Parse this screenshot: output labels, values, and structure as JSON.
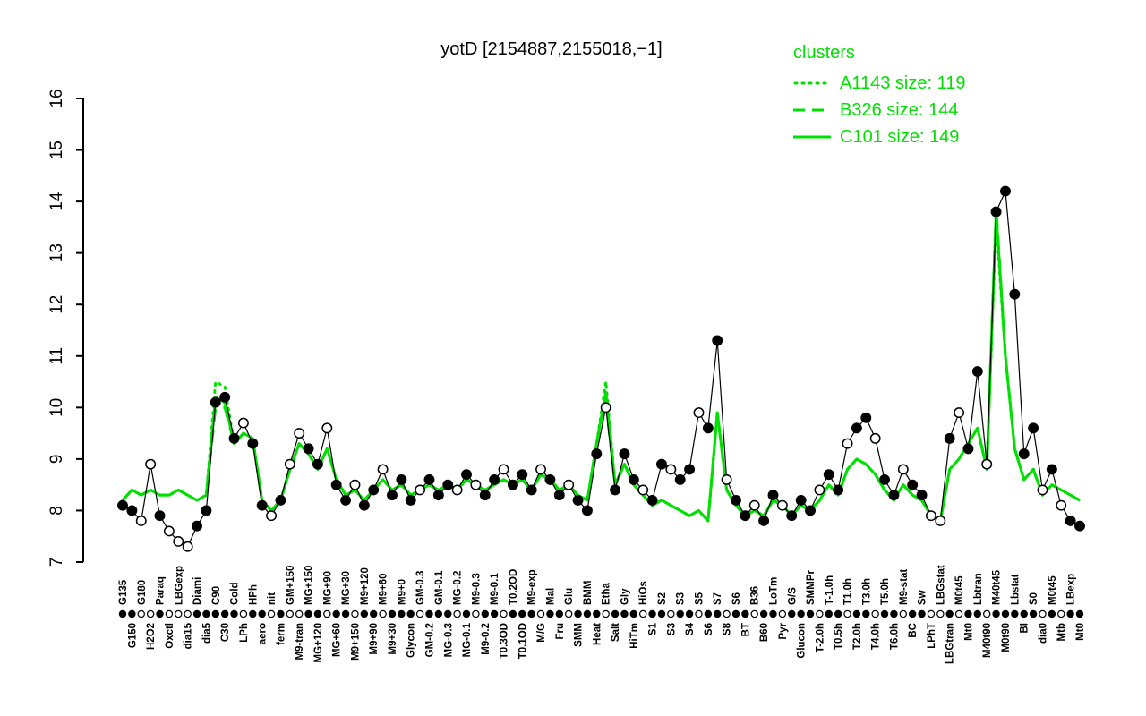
{
  "title": "yotD [2154887,2155018,−1]",
  "legend": {
    "header": "clusters"
  },
  "colors": {
    "cluster": "#00e000",
    "point_fill": "#000000",
    "point_open": "#ffffff",
    "axis": "#000000"
  },
  "chart_data": {
    "type": "line",
    "title": "yotD [2154887,2155018,−1]",
    "xlabel": "",
    "ylabel": "",
    "ylim": [
      7,
      16
    ],
    "yticks": [
      7,
      8,
      9,
      10,
      11,
      12,
      13,
      14,
      15,
      16
    ],
    "grid": false,
    "legend_position": "top-right",
    "categories": [
      "G135",
      "G150",
      "G180",
      "H2O2",
      "Paraq",
      "Oxctl",
      "LBGexp",
      "dia15",
      "Diami",
      "dia5",
      "C90",
      "C30",
      "Cold",
      "LPh",
      "HPh",
      "aero",
      "nit",
      "ferm",
      "GM+150",
      "M9-tran",
      "MG+150",
      "MG+120",
      "MG+90",
      "MG+60",
      "MG+30",
      "M9+150",
      "M9+120",
      "M9+90",
      "M9+60",
      "M9+30",
      "M9+0",
      "Glycon",
      "GM-0.3",
      "GM-0.2",
      "GM-0.1",
      "MG-0.3",
      "MG-0.2",
      "MG-0.1",
      "M9-0.3",
      "M9-0.2",
      "M9-0.1",
      "T0.3OD",
      "T0.2OD",
      "T0.1OD",
      "M9-exp",
      "M/G",
      "Mal",
      "Fru",
      "Glu",
      "SMM",
      "BMM",
      "Heat",
      "Etha",
      "Salt",
      "Gly",
      "HiTm",
      "HiOs",
      "S1",
      "S2",
      "S3",
      "S3",
      "S4",
      "S5",
      "S6",
      "S7",
      "S8",
      "S6",
      "BT",
      "B36",
      "B60",
      "LoTm",
      "Pyr",
      "G/S",
      "Glucon",
      "SMMPr",
      "T-2.0h",
      "T-1.0h",
      "T0.5h",
      "T1.0h",
      "T2.0h",
      "T3.0h",
      "T4.0h",
      "T5.0h",
      "T6.0h",
      "M9-stat",
      "BC",
      "Sw",
      "LPhT",
      "LBGstat",
      "LBGtran",
      "M0t45",
      "Mt0",
      "Lbtran",
      "M40t90",
      "M40t45",
      "M0t90",
      "Lbstat",
      "BI",
      "S0",
      "dia0",
      "M0t45",
      "Mtb",
      "LBexp",
      "Mt0"
    ],
    "points": {
      "name": "yotD expression",
      "values": [
        8.1,
        8.0,
        7.8,
        8.9,
        7.9,
        7.6,
        7.4,
        7.3,
        7.7,
        8.0,
        10.1,
        10.2,
        9.4,
        9.7,
        9.3,
        8.1,
        7.9,
        8.2,
        8.9,
        9.5,
        9.2,
        8.9,
        9.6,
        8.5,
        8.2,
        8.5,
        8.1,
        8.4,
        8.8,
        8.3,
        8.6,
        8.2,
        8.4,
        8.6,
        8.3,
        8.5,
        8.4,
        8.7,
        8.5,
        8.3,
        8.6,
        8.8,
        8.5,
        8.7,
        8.4,
        8.8,
        8.6,
        8.3,
        8.5,
        8.2,
        8.0,
        9.1,
        10.0,
        8.4,
        9.1,
        8.6,
        8.4,
        8.2,
        8.9,
        8.8,
        8.6,
        8.8,
        9.9,
        9.6,
        11.3,
        8.6,
        8.2,
        7.9,
        8.1,
        7.8,
        8.3,
        8.1,
        7.9,
        8.2,
        8.0,
        8.4,
        8.7,
        8.4,
        9.3,
        9.6,
        9.8,
        9.4,
        8.6,
        8.3,
        8.8,
        8.5,
        8.3,
        7.9,
        7.8,
        9.4,
        9.9,
        9.2,
        10.7,
        8.9,
        13.8,
        14.2,
        12.2,
        9.1,
        9.6,
        8.4,
        8.8,
        8.1,
        7.8,
        7.7
      ],
      "filled": [
        1,
        1,
        0,
        0,
        1,
        0,
        0,
        0,
        1,
        1,
        1,
        1,
        1,
        0,
        1,
        1,
        0,
        1,
        0,
        0,
        1,
        1,
        0,
        1,
        1,
        0,
        1,
        1,
        0,
        1,
        1,
        1,
        0,
        1,
        1,
        1,
        0,
        1,
        0,
        1,
        1,
        0,
        1,
        1,
        1,
        0,
        1,
        1,
        0,
        1,
        1,
        1,
        0,
        1,
        1,
        1,
        0,
        1,
        1,
        0,
        1,
        1,
        0,
        1,
        1,
        0,
        1,
        1,
        0,
        1,
        1,
        0,
        1,
        1,
        1,
        0,
        1,
        1,
        0,
        1,
        1,
        0,
        1,
        1,
        0,
        1,
        1,
        0,
        0,
        1,
        0,
        1,
        1,
        0,
        1,
        1,
        1,
        1,
        1,
        0,
        1,
        0,
        1,
        1
      ]
    },
    "series": [
      {
        "name": "A1143 size: 119",
        "dash": "dotted",
        "values": [
          8.2,
          8.4,
          8.3,
          8.4,
          8.3,
          8.3,
          8.4,
          8.3,
          8.2,
          8.3,
          10.5,
          10.4,
          9.3,
          9.5,
          9.4,
          8.2,
          8.0,
          8.2,
          8.8,
          9.3,
          9.1,
          8.8,
          9.2,
          8.6,
          8.3,
          8.4,
          8.2,
          8.4,
          8.6,
          8.4,
          8.5,
          8.3,
          8.4,
          8.5,
          8.4,
          8.5,
          8.4,
          8.6,
          8.5,
          8.4,
          8.5,
          8.6,
          8.5,
          8.6,
          8.4,
          8.7,
          8.6,
          8.4,
          8.5,
          8.3,
          8.2,
          9.3,
          10.5,
          8.5,
          8.9,
          8.5,
          8.3,
          8.1,
          8.2,
          8.1,
          8.0,
          7.9,
          8.0,
          7.8,
          9.9,
          8.4,
          8.1,
          7.9,
          8.0,
          7.9,
          8.2,
          8.1,
          7.9,
          8.1,
          8.0,
          8.2,
          8.5,
          8.3,
          8.8,
          9.0,
          8.9,
          8.7,
          8.4,
          8.2,
          8.5,
          8.3,
          8.2,
          7.9,
          7.8,
          8.8,
          9.0,
          9.3,
          9.6,
          8.8,
          13.6,
          11.0,
          9.2,
          8.6,
          8.8,
          8.3,
          8.5,
          8.4,
          8.3,
          8.2
        ]
      },
      {
        "name": "B326 size: 144",
        "dash": "dashed",
        "values": [
          8.2,
          8.4,
          8.3,
          8.4,
          8.3,
          8.3,
          8.4,
          8.3,
          8.2,
          8.3,
          10.0,
          10.0,
          9.3,
          9.5,
          9.4,
          8.2,
          8.0,
          8.2,
          8.8,
          9.3,
          9.1,
          8.8,
          9.2,
          8.6,
          8.3,
          8.4,
          8.2,
          8.4,
          8.6,
          8.4,
          8.5,
          8.3,
          8.4,
          8.5,
          8.4,
          8.5,
          8.4,
          8.6,
          8.5,
          8.4,
          8.5,
          8.6,
          8.5,
          8.6,
          8.4,
          8.7,
          8.6,
          8.4,
          8.5,
          8.3,
          8.2,
          9.3,
          10.1,
          8.5,
          8.9,
          8.5,
          8.3,
          8.1,
          8.2,
          8.1,
          8.0,
          7.9,
          8.0,
          7.8,
          9.9,
          8.4,
          8.1,
          7.9,
          8.0,
          7.9,
          8.2,
          8.1,
          7.9,
          8.1,
          8.0,
          8.2,
          8.5,
          8.3,
          8.8,
          9.0,
          8.9,
          8.7,
          8.4,
          8.2,
          8.5,
          8.3,
          8.2,
          7.9,
          7.8,
          8.8,
          9.0,
          9.3,
          9.6,
          8.8,
          13.9,
          11.0,
          9.2,
          8.6,
          8.8,
          8.3,
          8.5,
          8.4,
          8.3,
          8.2
        ]
      },
      {
        "name": "C101 size: 149",
        "dash": "solid",
        "values": [
          8.2,
          8.4,
          8.3,
          8.4,
          8.3,
          8.3,
          8.4,
          8.3,
          8.2,
          8.3,
          10.2,
          10.1,
          9.3,
          9.5,
          9.4,
          8.2,
          8.0,
          8.2,
          8.8,
          9.3,
          9.1,
          8.8,
          9.2,
          8.6,
          8.3,
          8.4,
          8.2,
          8.4,
          8.6,
          8.4,
          8.5,
          8.3,
          8.4,
          8.5,
          8.4,
          8.5,
          8.4,
          8.6,
          8.5,
          8.4,
          8.5,
          8.6,
          8.5,
          8.6,
          8.4,
          8.7,
          8.6,
          8.4,
          8.5,
          8.3,
          8.2,
          9.3,
          10.3,
          8.5,
          8.9,
          8.5,
          8.3,
          8.1,
          8.2,
          8.1,
          8.0,
          7.9,
          8.0,
          7.8,
          9.9,
          8.4,
          8.1,
          7.9,
          8.0,
          7.9,
          8.2,
          8.1,
          7.9,
          8.1,
          8.0,
          8.2,
          8.5,
          8.3,
          8.8,
          9.0,
          8.9,
          8.7,
          8.4,
          8.2,
          8.5,
          8.3,
          8.2,
          7.9,
          7.8,
          8.8,
          9.0,
          9.3,
          9.6,
          8.8,
          13.8,
          11.0,
          9.2,
          8.6,
          8.8,
          8.3,
          8.5,
          8.4,
          8.3,
          8.2
        ]
      }
    ]
  }
}
